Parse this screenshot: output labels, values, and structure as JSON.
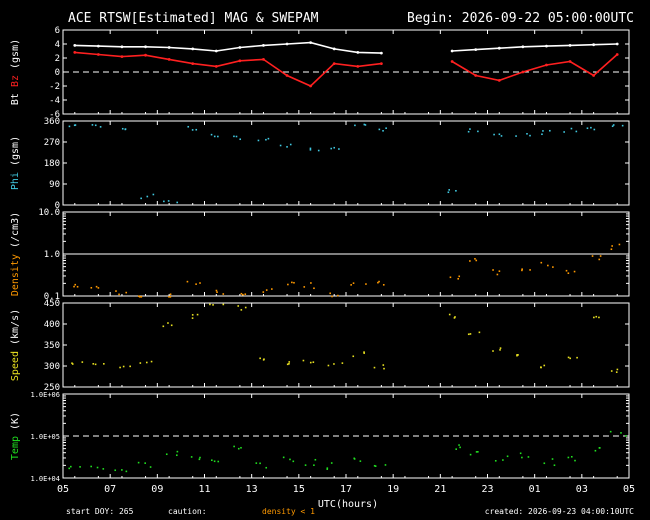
{
  "header": {
    "title": "ACE RTSW[Estimated] MAG & SWEPAM",
    "begin": "Begin: 2026-09-22 05:00:00UTC"
  },
  "footer": {
    "start_doy": "start DOY: 265",
    "caution": "caution:",
    "density_note": "density < 1",
    "created": "created: 2026-09-23 04:00:10UTC"
  },
  "colors": {
    "bt": "#ffffff",
    "bz": "#ff2020",
    "phi": "#40c8e0",
    "density": "#ff9900",
    "speed": "#e8e020",
    "temp": "#20e020",
    "axis": "#ffffff",
    "background": "#000000"
  },
  "chart_data": [
    {
      "type": "line",
      "panel": "mag",
      "ylabel_parts": [
        "Bt",
        "Bz",
        "(gsm)"
      ],
      "ylim": [
        -6,
        6
      ],
      "yticks": [
        "6",
        "4",
        "2",
        "0",
        "-2",
        "-4",
        "-6"
      ],
      "reference_line": 0,
      "x": [
        0,
        1,
        2,
        3,
        4,
        5,
        6,
        7,
        8,
        9,
        10,
        11,
        12,
        13,
        14,
        15,
        16,
        17,
        18,
        19,
        20,
        21,
        22,
        23
      ],
      "series": [
        {
          "name": "Bt",
          "values": [
            3.8,
            3.7,
            3.6,
            3.6,
            3.5,
            3.3,
            3.0,
            3.5,
            3.8,
            4.0,
            4.2,
            3.3,
            2.8,
            2.7,
            null,
            null,
            3.0,
            3.2,
            3.4,
            3.6,
            3.7,
            3.8,
            3.9,
            4.0
          ]
        },
        {
          "name": "Bz",
          "values": [
            2.8,
            2.5,
            2.2,
            2.4,
            1.8,
            1.2,
            0.8,
            1.6,
            1.8,
            -0.5,
            -2.0,
            1.2,
            0.8,
            1.2,
            null,
            null,
            1.5,
            -0.5,
            -1.2,
            0.0,
            1.0,
            1.5,
            -0.5,
            2.5
          ]
        }
      ]
    },
    {
      "type": "scatter",
      "panel": "phi",
      "ylabel_parts": [
        "Phi",
        "(gsm)"
      ],
      "ylim": [
        0,
        360
      ],
      "yticks": [
        "360",
        "270",
        "180",
        "90",
        "0"
      ],
      "x": [
        0,
        1,
        2,
        3,
        4,
        5,
        6,
        7,
        8,
        9,
        10,
        11,
        12,
        13,
        14,
        15,
        16,
        17,
        18,
        19,
        20,
        21,
        22,
        23
      ],
      "series": [
        {
          "name": "Phi",
          "values": [
            345,
            340,
            335,
            40,
            20,
            330,
            300,
            290,
            285,
            260,
            240,
            250,
            340,
            330,
            null,
            null,
            60,
            320,
            300,
            305,
            315,
            325,
            335,
            350
          ]
        }
      ]
    },
    {
      "type": "scatter",
      "panel": "density",
      "ylabel_parts": [
        "Density",
        "(/cm3)"
      ],
      "scale": "log",
      "ylim": [
        0.1,
        10
      ],
      "yticks": [
        "10.0",
        "1.0",
        "0.1"
      ],
      "x": [
        0,
        1,
        2,
        3,
        4,
        5,
        6,
        7,
        8,
        9,
        10,
        11,
        12,
        13,
        14,
        15,
        16,
        17,
        18,
        19,
        20,
        21,
        22,
        23
      ],
      "series": [
        {
          "name": "Density",
          "values": [
            0.2,
            0.15,
            0.12,
            0.1,
            0.1,
            0.2,
            0.12,
            0.1,
            0.15,
            0.2,
            0.18,
            0.12,
            0.2,
            0.2,
            null,
            null,
            0.3,
            0.8,
            0.4,
            0.5,
            0.6,
            0.4,
            0.8,
            1.5
          ]
        }
      ]
    },
    {
      "type": "scatter",
      "panel": "speed",
      "ylabel_parts": [
        "Speed",
        "(km/s)"
      ],
      "ylim": [
        250,
        450
      ],
      "yticks": [
        "450",
        "400",
        "350",
        "300",
        "250"
      ],
      "x": [
        0,
        1,
        2,
        3,
        4,
        5,
        6,
        7,
        8,
        9,
        10,
        11,
        12,
        13,
        14,
        15,
        16,
        17,
        18,
        19,
        20,
        21,
        22,
        23
      ],
      "series": [
        {
          "name": "Speed",
          "values": [
            310,
            305,
            300,
            310,
            400,
            420,
            450,
            440,
            320,
            310,
            315,
            305,
            330,
            300,
            null,
            null,
            420,
            380,
            340,
            330,
            300,
            320,
            420,
            290
          ]
        }
      ]
    },
    {
      "type": "scatter",
      "panel": "temp",
      "ylabel_parts": [
        "Temp",
        "(K)"
      ],
      "scale": "log",
      "ylim": [
        10000,
        1000000
      ],
      "yticks": [
        "1.0E+06",
        "1.0E+05",
        "1.0E+04"
      ],
      "reference_line": 100000,
      "x": [
        0,
        1,
        2,
        3,
        4,
        5,
        6,
        7,
        8,
        9,
        10,
        11,
        12,
        13,
        14,
        15,
        16,
        17,
        18,
        19,
        20,
        21,
        22,
        23
      ],
      "series": [
        {
          "name": "Temp",
          "values": [
            18000,
            20000,
            16000,
            22000,
            40000,
            30000,
            25000,
            60000,
            20000,
            30000,
            25000,
            20000,
            30000,
            20000,
            null,
            null,
            60000,
            40000,
            30000,
            35000,
            25000,
            30000,
            50000,
            120000
          ]
        }
      ]
    }
  ],
  "x_axis": {
    "label": "UTC(hours)",
    "ticks": [
      "05",
      "07",
      "09",
      "11",
      "13",
      "15",
      "17",
      "19",
      "21",
      "23",
      "01",
      "03",
      "05"
    ]
  }
}
